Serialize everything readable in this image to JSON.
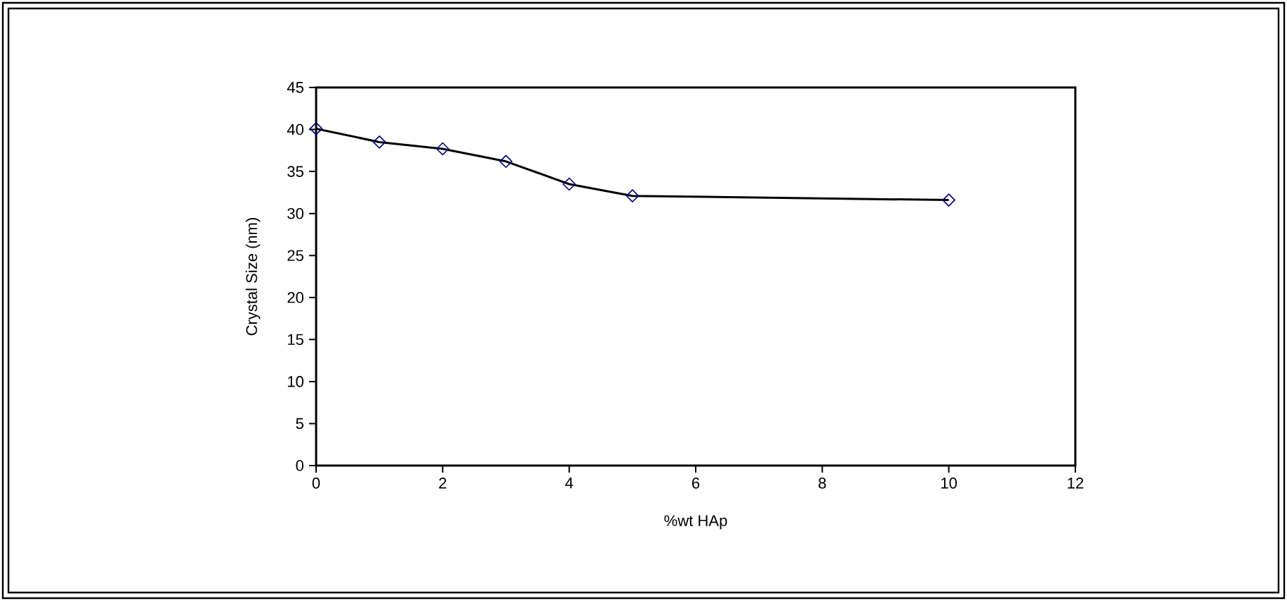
{
  "chart_data": {
    "type": "line",
    "xlabel": "%wt HAp",
    "ylabel": "Crystal Size (nm)",
    "x": [
      0,
      1,
      2,
      3,
      4,
      5,
      10
    ],
    "series": [
      {
        "color": "#000000",
        "values": [
          40.1,
          38.5,
          37.7,
          36.2,
          33.5,
          32.1,
          31.6
        ]
      }
    ],
    "xlim": [
      0,
      12
    ],
    "xticks": [
      0,
      2,
      4,
      6,
      8,
      10,
      12
    ],
    "ylim": [
      0,
      45
    ],
    "yticks": [
      0,
      5,
      10,
      15,
      20,
      25,
      30,
      35,
      40,
      45
    ],
    "marker": "diamond",
    "line_style": "solid",
    "grid": false
  }
}
